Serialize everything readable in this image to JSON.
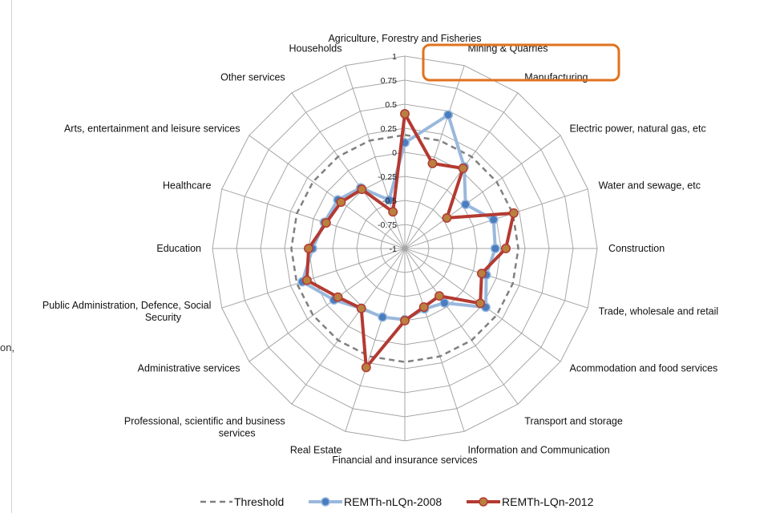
{
  "stray_text": "on,",
  "chart_data": {
    "type": "radar",
    "title": "",
    "categories": [
      [
        "Agriculture, Forestry and Fisheries"
      ],
      [
        "Mining & Quarries"
      ],
      [
        "Manufacturing"
      ],
      [
        "Electric power, natural gas, etc"
      ],
      [
        "Water and sewage, etc"
      ],
      [
        "Construction"
      ],
      [
        "Trade, wholesale and retail"
      ],
      [
        "Acommodation and food services"
      ],
      [
        "Transport and storage"
      ],
      [
        "Information and Communication"
      ],
      [
        "Financial and insurance services"
      ],
      [
        "Real Estate"
      ],
      [
        "Professional, scientific and business",
        "services"
      ],
      [
        "Administrative services"
      ],
      [
        "Public Administration, Defence, Social",
        "Security"
      ],
      [
        "Education"
      ],
      [
        "Healthcare"
      ],
      [
        "Arts, entertainment and leisure services"
      ],
      [
        "Other services"
      ],
      [
        "Households"
      ]
    ],
    "r_range": [
      -1,
      1
    ],
    "r_ticks": [
      "1",
      "0.75",
      "0.5",
      "0.25",
      "0",
      "-0.25",
      "-0.5",
      "-0.75",
      "-1"
    ],
    "series": [
      {
        "name": "Threshold",
        "color": "#808080",
        "dashed": true,
        "values": [
          0.18,
          0.18,
          0.18,
          0.18,
          0.18,
          0.18,
          0.18,
          0.18,
          0.18,
          0.18,
          0.18,
          0.18,
          0.18,
          0.18,
          0.18,
          0.18,
          0.18,
          0.18,
          0.18,
          0.18
        ]
      },
      {
        "name": "REMTh-nLQn-2008",
        "color": "#9ab8dc",
        "marker_color": "#4a7dc0",
        "values": [
          0.1,
          0.46,
          0.05,
          -0.22,
          -0.03,
          -0.06,
          -0.11,
          0.04,
          -0.3,
          -0.34,
          -0.26,
          -0.25,
          -0.23,
          -0.09,
          0.12,
          -0.04,
          -0.12,
          -0.14,
          -0.22,
          -0.47
        ]
      },
      {
        "name": "REMTh-LQn-2012",
        "color": "#b33a32",
        "marker_color": "#b9803f",
        "values": [
          0.4,
          -0.07,
          0.03,
          -0.46,
          0.19,
          0.05,
          -0.16,
          -0.03,
          -0.39,
          -0.36,
          -0.25,
          0.3,
          -0.23,
          -0.14,
          0.07,
          0.0,
          -0.14,
          -0.18,
          -0.24,
          -0.6
        ]
      }
    ],
    "legend_position": "bottom",
    "grid": true,
    "highlight": {
      "category_index": 1,
      "color": "#e0721e"
    }
  }
}
